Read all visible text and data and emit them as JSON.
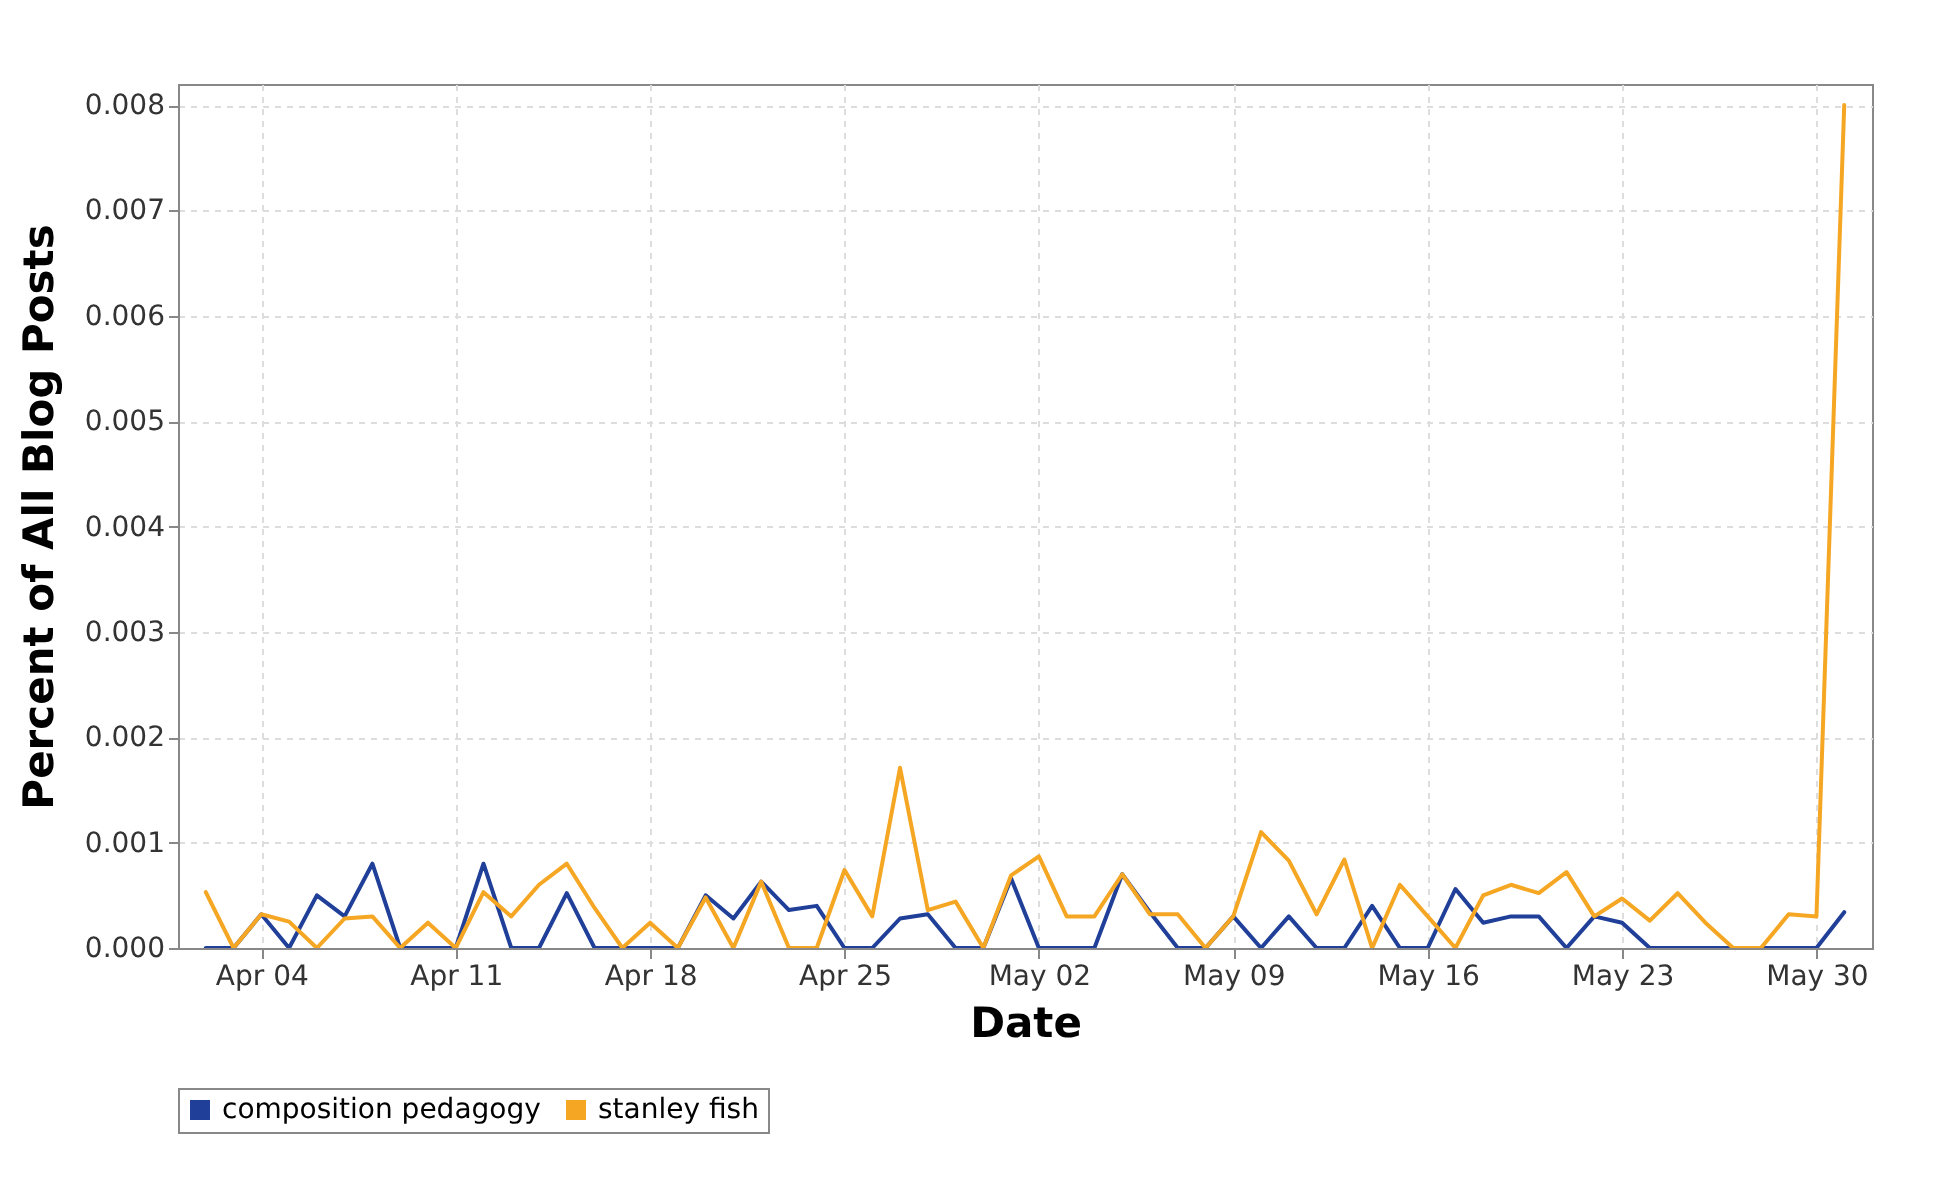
{
  "chart_data": {
    "type": "line",
    "xlabel": "Date",
    "ylabel": "Percent of All Blog Posts",
    "x": [
      "--04-02",
      "--04-03",
      "--04-04",
      "--04-05",
      "--04-06",
      "--04-07",
      "--04-08",
      "--04-09",
      "--04-10",
      "--04-11",
      "--04-12",
      "--04-13",
      "--04-14",
      "--04-15",
      "--04-16",
      "--04-17",
      "--04-18",
      "--04-19",
      "--04-20",
      "--04-21",
      "--04-22",
      "--04-23",
      "--04-24",
      "--04-25",
      "--04-26",
      "--04-27",
      "--04-28",
      "--04-29",
      "--04-30",
      "--05-01",
      "--05-02",
      "--05-03",
      "--05-04",
      "--05-05",
      "--05-06",
      "--05-07",
      "--05-08",
      "--05-09",
      "--05-10",
      "--05-11",
      "--05-12",
      "--05-13",
      "--05-14",
      "--05-15",
      "--05-16",
      "--05-17",
      "--05-18",
      "--05-19",
      "--05-20",
      "--05-21",
      "--05-22",
      "--05-23",
      "--05-24",
      "--05-25",
      "--05-26",
      "--05-27",
      "--05-28",
      "--05-29",
      "--05-30",
      "--05-31"
    ],
    "series": [
      {
        "name": "composition pedagogy",
        "color": "#1f3f99",
        "values": [
          0,
          0,
          0.00032,
          0,
          0.0005,
          0.0003,
          0.0008,
          0,
          0,
          0,
          0.0008,
          0,
          0,
          0.00052,
          0,
          0,
          0,
          0,
          0.0005,
          0.00028,
          0.00063,
          0.00036,
          0.0004,
          0,
          0,
          0.00028,
          0.00032,
          0,
          0,
          0.00066,
          0,
          0,
          0,
          0.0007,
          0.00034,
          0,
          0,
          0.0003,
          0,
          0.0003,
          0,
          0,
          0.0004,
          0,
          0,
          0.00056,
          0.00024,
          0.0003,
          0.0003,
          0,
          0.0003,
          0.00024,
          0,
          0,
          0,
          0,
          0,
          0,
          0,
          0.00034
        ]
      },
      {
        "name": "stanley fish",
        "color": "#f5a623",
        "values": [
          0.00053,
          0,
          0.00032,
          0.00025,
          0,
          0.00028,
          0.0003,
          0,
          0.00024,
          0,
          0.00053,
          0.0003,
          0.0006,
          0.0008,
          0.00038,
          0,
          0.00024,
          0,
          0.00048,
          0,
          0.00063,
          0,
          0,
          0.00074,
          0.0003,
          0.00171,
          0.00036,
          0.00044,
          0,
          0.00069,
          0.00087,
          0.0003,
          0.0003,
          0.0007,
          0.00032,
          0.00032,
          0,
          0.0003,
          0.0011,
          0.00083,
          0.00032,
          0.00084,
          0,
          0.0006,
          0.0003,
          0,
          0.0005,
          0.0006,
          0.00052,
          0.00072,
          0.0003,
          0.00047,
          0.00026,
          0.00052,
          0.00024,
          0,
          0,
          0.00032,
          0.0003,
          0.008
        ]
      }
    ],
    "xlim": [
      "--04-01",
      "--06-01"
    ],
    "xticks": [
      {
        "value": "--04-04",
        "label": "Apr 04"
      },
      {
        "value": "--04-11",
        "label": "Apr 11"
      },
      {
        "value": "--04-18",
        "label": "Apr 18"
      },
      {
        "value": "--04-25",
        "label": "Apr 25"
      },
      {
        "value": "--05-02",
        "label": "May 02"
      },
      {
        "value": "--05-09",
        "label": "May 09"
      },
      {
        "value": "--05-16",
        "label": "May 16"
      },
      {
        "value": "--05-23",
        "label": "May 23"
      },
      {
        "value": "--05-30",
        "label": "May 30"
      }
    ],
    "ylim": [
      0,
      0.0082
    ],
    "yticks": [
      {
        "value": 0,
        "label": "0.000"
      },
      {
        "value": 0.001,
        "label": "0.001"
      },
      {
        "value": 0.002,
        "label": "0.002"
      },
      {
        "value": 0.003,
        "label": "0.003"
      },
      {
        "value": 0.004,
        "label": "0.004"
      },
      {
        "value": 0.005,
        "label": "0.005"
      },
      {
        "value": 0.006,
        "label": "0.006"
      },
      {
        "value": 0.007,
        "label": "0.007"
      },
      {
        "value": 0.008,
        "label": "0.008"
      }
    ],
    "grid": true,
    "legend": "bottom",
    "line_style": "solid"
  }
}
